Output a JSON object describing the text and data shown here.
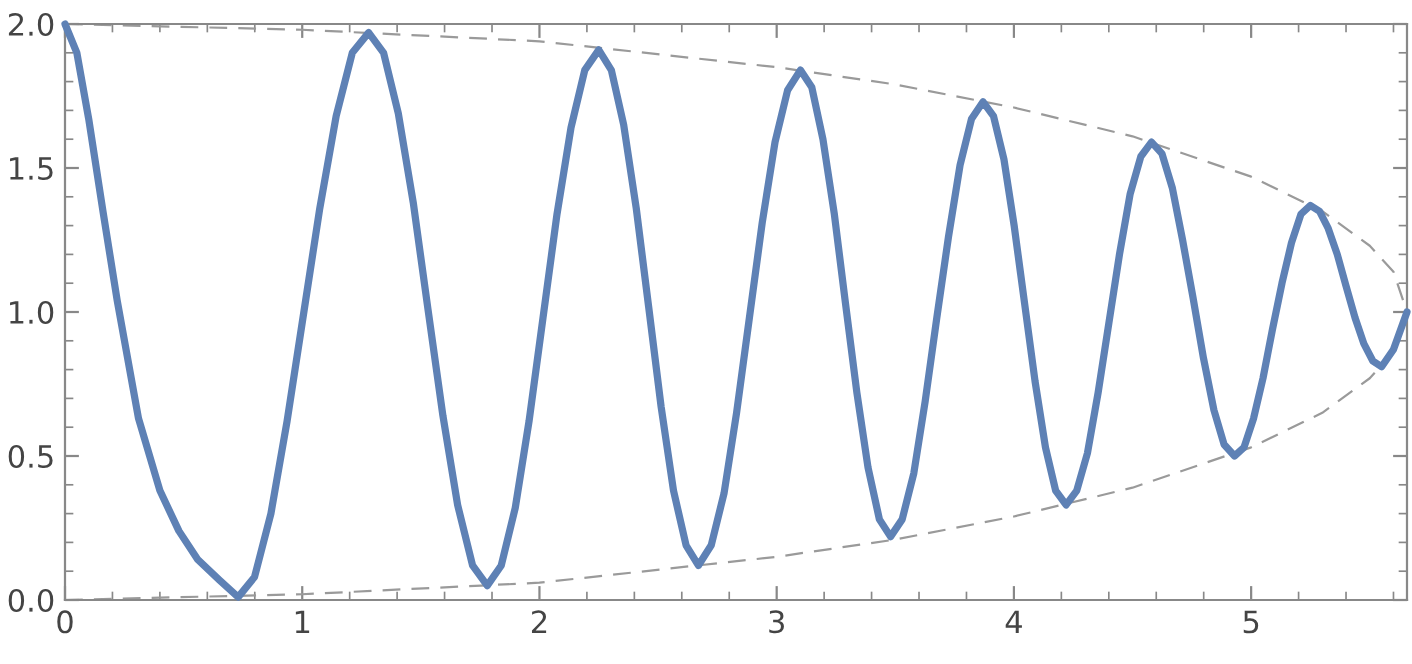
{
  "chart_data": {
    "type": "line",
    "xlim": [
      0,
      5.657
    ],
    "ylim": [
      0,
      2.0
    ],
    "xticks": [
      0,
      1,
      2,
      3,
      4,
      5
    ],
    "yticks": [
      {
        "value": 0,
        "label": "0.0"
      },
      {
        "value": 0.5,
        "label": "0.5"
      },
      {
        "value": 1,
        "label": "1.0"
      },
      {
        "value": 1.5,
        "label": "1.5"
      },
      {
        "value": 2,
        "label": "2.0"
      }
    ],
    "grid": false,
    "legend": false,
    "marker": "none",
    "series": [
      {
        "color": "#5e81b5",
        "line_style": "solid",
        "x": [
          0,
          0.05,
          0.1,
          0.16,
          0.22,
          0.31,
          0.4,
          0.48,
          0.56,
          0.65,
          0.73,
          0.799,
          0.868,
          0.936,
          1.005,
          1.074,
          1.143,
          1.211,
          1.28,
          1.343,
          1.405,
          1.468,
          1.53,
          1.593,
          1.655,
          1.718,
          1.78,
          1.839,
          1.898,
          1.956,
          2.015,
          2.074,
          2.133,
          2.191,
          2.25,
          2.303,
          2.355,
          2.408,
          2.46,
          2.513,
          2.565,
          2.618,
          2.67,
          2.724,
          2.778,
          2.831,
          2.885,
          2.939,
          2.993,
          3.046,
          3.1,
          3.148,
          3.195,
          3.243,
          3.29,
          3.338,
          3.385,
          3.433,
          3.48,
          3.529,
          3.578,
          3.626,
          3.675,
          3.724,
          3.773,
          3.821,
          3.87,
          3.914,
          3.958,
          4.001,
          4.045,
          4.089,
          4.133,
          4.176,
          4.22,
          4.265,
          4.31,
          4.355,
          4.4,
          4.445,
          4.49,
          4.535,
          4.58,
          4.624,
          4.668,
          4.711,
          4.755,
          4.799,
          4.843,
          4.886,
          4.93,
          4.97,
          5.01,
          5.05,
          5.09,
          5.13,
          5.17,
          5.21,
          5.25,
          5.288,
          5.325,
          5.363,
          5.4,
          5.438,
          5.475,
          5.513,
          5.55,
          5.6,
          5.657
        ],
        "values": [
          2.0,
          1.9,
          1.67,
          1.35,
          1.04,
          0.63,
          0.38,
          0.24,
          0.14,
          0.07,
          0.01,
          0.08,
          0.3,
          0.62,
          0.99,
          1.36,
          1.68,
          1.9,
          1.97,
          1.9,
          1.69,
          1.38,
          1.01,
          0.64,
          0.33,
          0.12,
          0.05,
          0.12,
          0.32,
          0.62,
          0.98,
          1.34,
          1.64,
          1.84,
          1.91,
          1.84,
          1.65,
          1.36,
          1.02,
          0.67,
          0.38,
          0.19,
          0.12,
          0.19,
          0.37,
          0.65,
          0.98,
          1.31,
          1.59,
          1.77,
          1.84,
          1.78,
          1.6,
          1.34,
          1.03,
          0.72,
          0.46,
          0.28,
          0.22,
          0.28,
          0.44,
          0.69,
          0.98,
          1.26,
          1.51,
          1.67,
          1.73,
          1.68,
          1.53,
          1.3,
          1.03,
          0.76,
          0.53,
          0.38,
          0.33,
          0.38,
          0.51,
          0.72,
          0.96,
          1.2,
          1.41,
          1.54,
          1.59,
          1.55,
          1.43,
          1.25,
          1.05,
          0.84,
          0.66,
          0.54,
          0.5,
          0.53,
          0.63,
          0.77,
          0.94,
          1.1,
          1.24,
          1.34,
          1.37,
          1.35,
          1.29,
          1.2,
          1.09,
          0.98,
          0.89,
          0.83,
          0.81,
          0.87,
          1.0
        ]
      },
      {
        "color": "#9a9a9a",
        "line_style": "dashed",
        "x": [
          0,
          1,
          2,
          3,
          3.5,
          4,
          4.5,
          5,
          5.3,
          5.5,
          5.6,
          5.657
        ],
        "values": [
          2.0,
          1.98,
          1.94,
          1.85,
          1.79,
          1.71,
          1.61,
          1.47,
          1.35,
          1.23,
          1.14,
          1.0
        ]
      },
      {
        "color": "#9a9a9a",
        "line_style": "dashed",
        "x": [
          0,
          1,
          2,
          3,
          3.5,
          4,
          4.5,
          5,
          5.3,
          5.5,
          5.6,
          5.657
        ],
        "values": [
          0.0,
          0.02,
          0.06,
          0.15,
          0.21,
          0.29,
          0.39,
          0.53,
          0.65,
          0.77,
          0.86,
          1.0
        ]
      }
    ]
  }
}
